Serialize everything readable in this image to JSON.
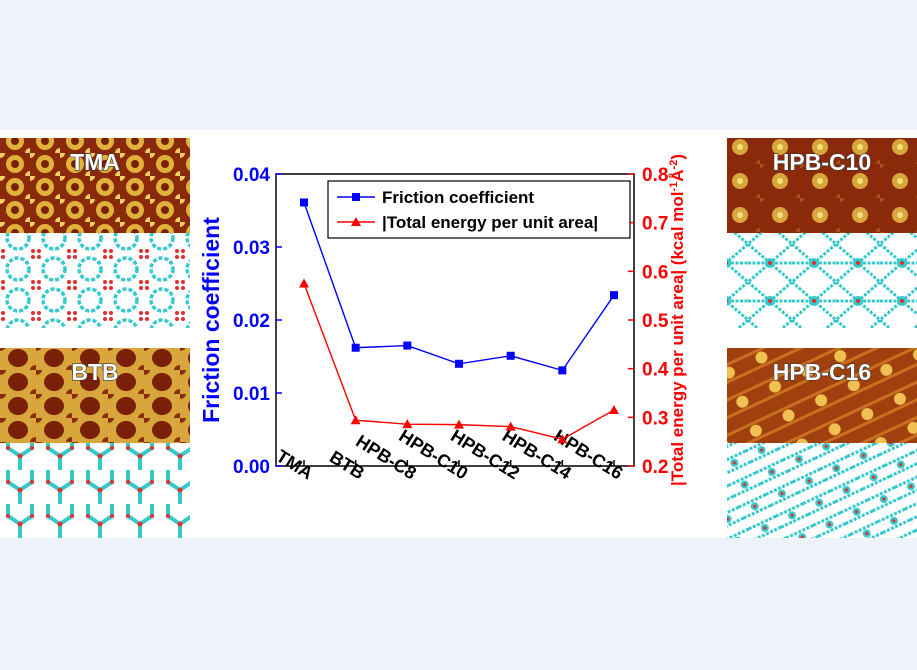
{
  "panels": {
    "tma": "TMA",
    "btb": "BTB",
    "hpb_c10": "HPB-C10",
    "hpb_c16": "HPB-C16"
  },
  "colors": {
    "left_axis": "#0000ff",
    "right_axis": "#ff0000",
    "stm_dark": "#8a2a0a",
    "stm_light": "#e0b23a",
    "model_cyan": "#35c9cc",
    "model_red": "#e03030"
  },
  "chart_data": {
    "type": "line",
    "categories": [
      "TMA",
      "BTB",
      "HPB-C8",
      "HPB-C10",
      "HPB-C12",
      "HPB-C14",
      "HPB-C16"
    ],
    "series": [
      {
        "name": "Friction coefficient",
        "axis": "left",
        "marker": "square",
        "color": "#0000ff",
        "values": [
          0.0361,
          0.0162,
          0.0165,
          0.014,
          0.0151,
          0.0131,
          0.0234
        ]
      },
      {
        "name": "|Total energy per unit area|",
        "axis": "right",
        "marker": "triangle",
        "color": "#ff0000",
        "values": [
          0.575,
          0.294,
          0.286,
          0.285,
          0.281,
          0.255,
          0.315
        ]
      }
    ],
    "ylabel": "Friction coefficient",
    "y2label": "|Total energy per unit area| (kcal mol-1Å-2)",
    "ylim": [
      0.0,
      0.04
    ],
    "y2lim": [
      0.2,
      0.8
    ],
    "yticks": [
      "0.00",
      "0.01",
      "0.02",
      "0.03",
      "0.04"
    ],
    "y2ticks": [
      "0.2",
      "0.3",
      "0.4",
      "0.5",
      "0.6",
      "0.7",
      "0.8"
    ],
    "legend_position": "top-center",
    "grid": false
  }
}
